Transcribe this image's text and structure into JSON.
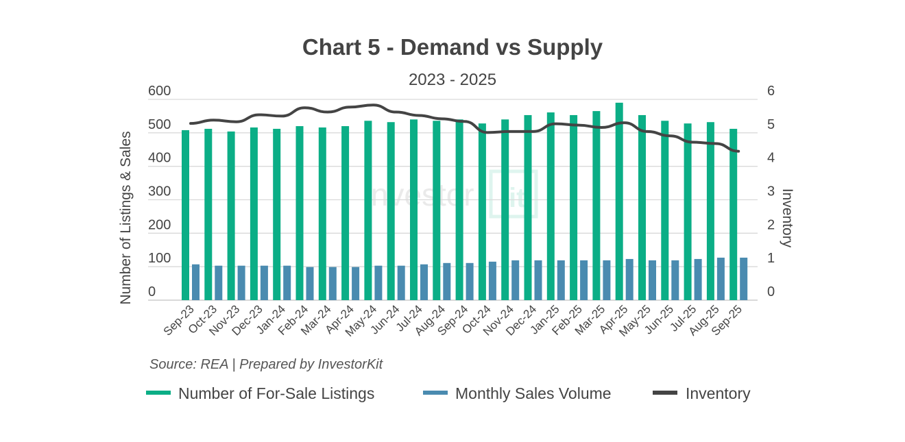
{
  "chart_data": {
    "type": "bar",
    "title": "Chart 5 - Demand vs Supply",
    "subtitle": "2023 - 2025",
    "ylabel": "Number of Listings & Sales",
    "y2label": "Inventory",
    "ylim": [
      0,
      600
    ],
    "y2lim": [
      0,
      6
    ],
    "yticks": [
      "0",
      "100",
      "200",
      "300",
      "400",
      "500",
      "600"
    ],
    "y2ticks": [
      "0",
      "1",
      "2",
      "3",
      "4",
      "5",
      "6"
    ],
    "grid": true,
    "legend_position": "bottom",
    "source": "Source: REA | Prepared by InvestorKit",
    "watermark": "InvestorKit",
    "categories": [
      "Sep-23",
      "Oct-23",
      "Nov-23",
      "Dec-23",
      "Jan-24",
      "Feb-24",
      "Mar-24",
      "Apr-24",
      "May-24",
      "Jun-24",
      "Jul-24",
      "Aug-24",
      "Sep-24",
      "Oct-24",
      "Nov-24",
      "Dec-24",
      "Jan-25",
      "Feb-25",
      "Mar-25",
      "Apr-25",
      "May-25",
      "Jun-25",
      "Jul-25",
      "Aug-25",
      "Sep-25"
    ],
    "series": [
      {
        "name": "Number of For-Sale Listings",
        "type": "bar",
        "axis": "left",
        "color": "#0bae86",
        "values": [
          508,
          512,
          504,
          516,
          512,
          520,
          516,
          520,
          536,
          532,
          540,
          536,
          540,
          528,
          540,
          553,
          561,
          553,
          565,
          590,
          553,
          536,
          528,
          532,
          512
        ]
      },
      {
        "name": "Monthly Sales Volume",
        "type": "bar",
        "axis": "left",
        "color": "#4a8bb0",
        "values": [
          107,
          103,
          103,
          103,
          103,
          99,
          99,
          99,
          103,
          103,
          107,
          111,
          111,
          115,
          119,
          119,
          119,
          119,
          119,
          123,
          119,
          119,
          123,
          127,
          127
        ]
      },
      {
        "name": "Inventory",
        "type": "line",
        "axis": "right",
        "color": "#444444",
        "values": [
          5.28,
          5.38,
          5.33,
          5.54,
          5.5,
          5.75,
          5.62,
          5.77,
          5.83,
          5.62,
          5.52,
          5.42,
          5.34,
          5.01,
          5.04,
          5.04,
          5.27,
          5.23,
          5.16,
          5.3,
          5.04,
          4.91,
          4.72,
          4.68,
          4.45
        ]
      }
    ]
  }
}
